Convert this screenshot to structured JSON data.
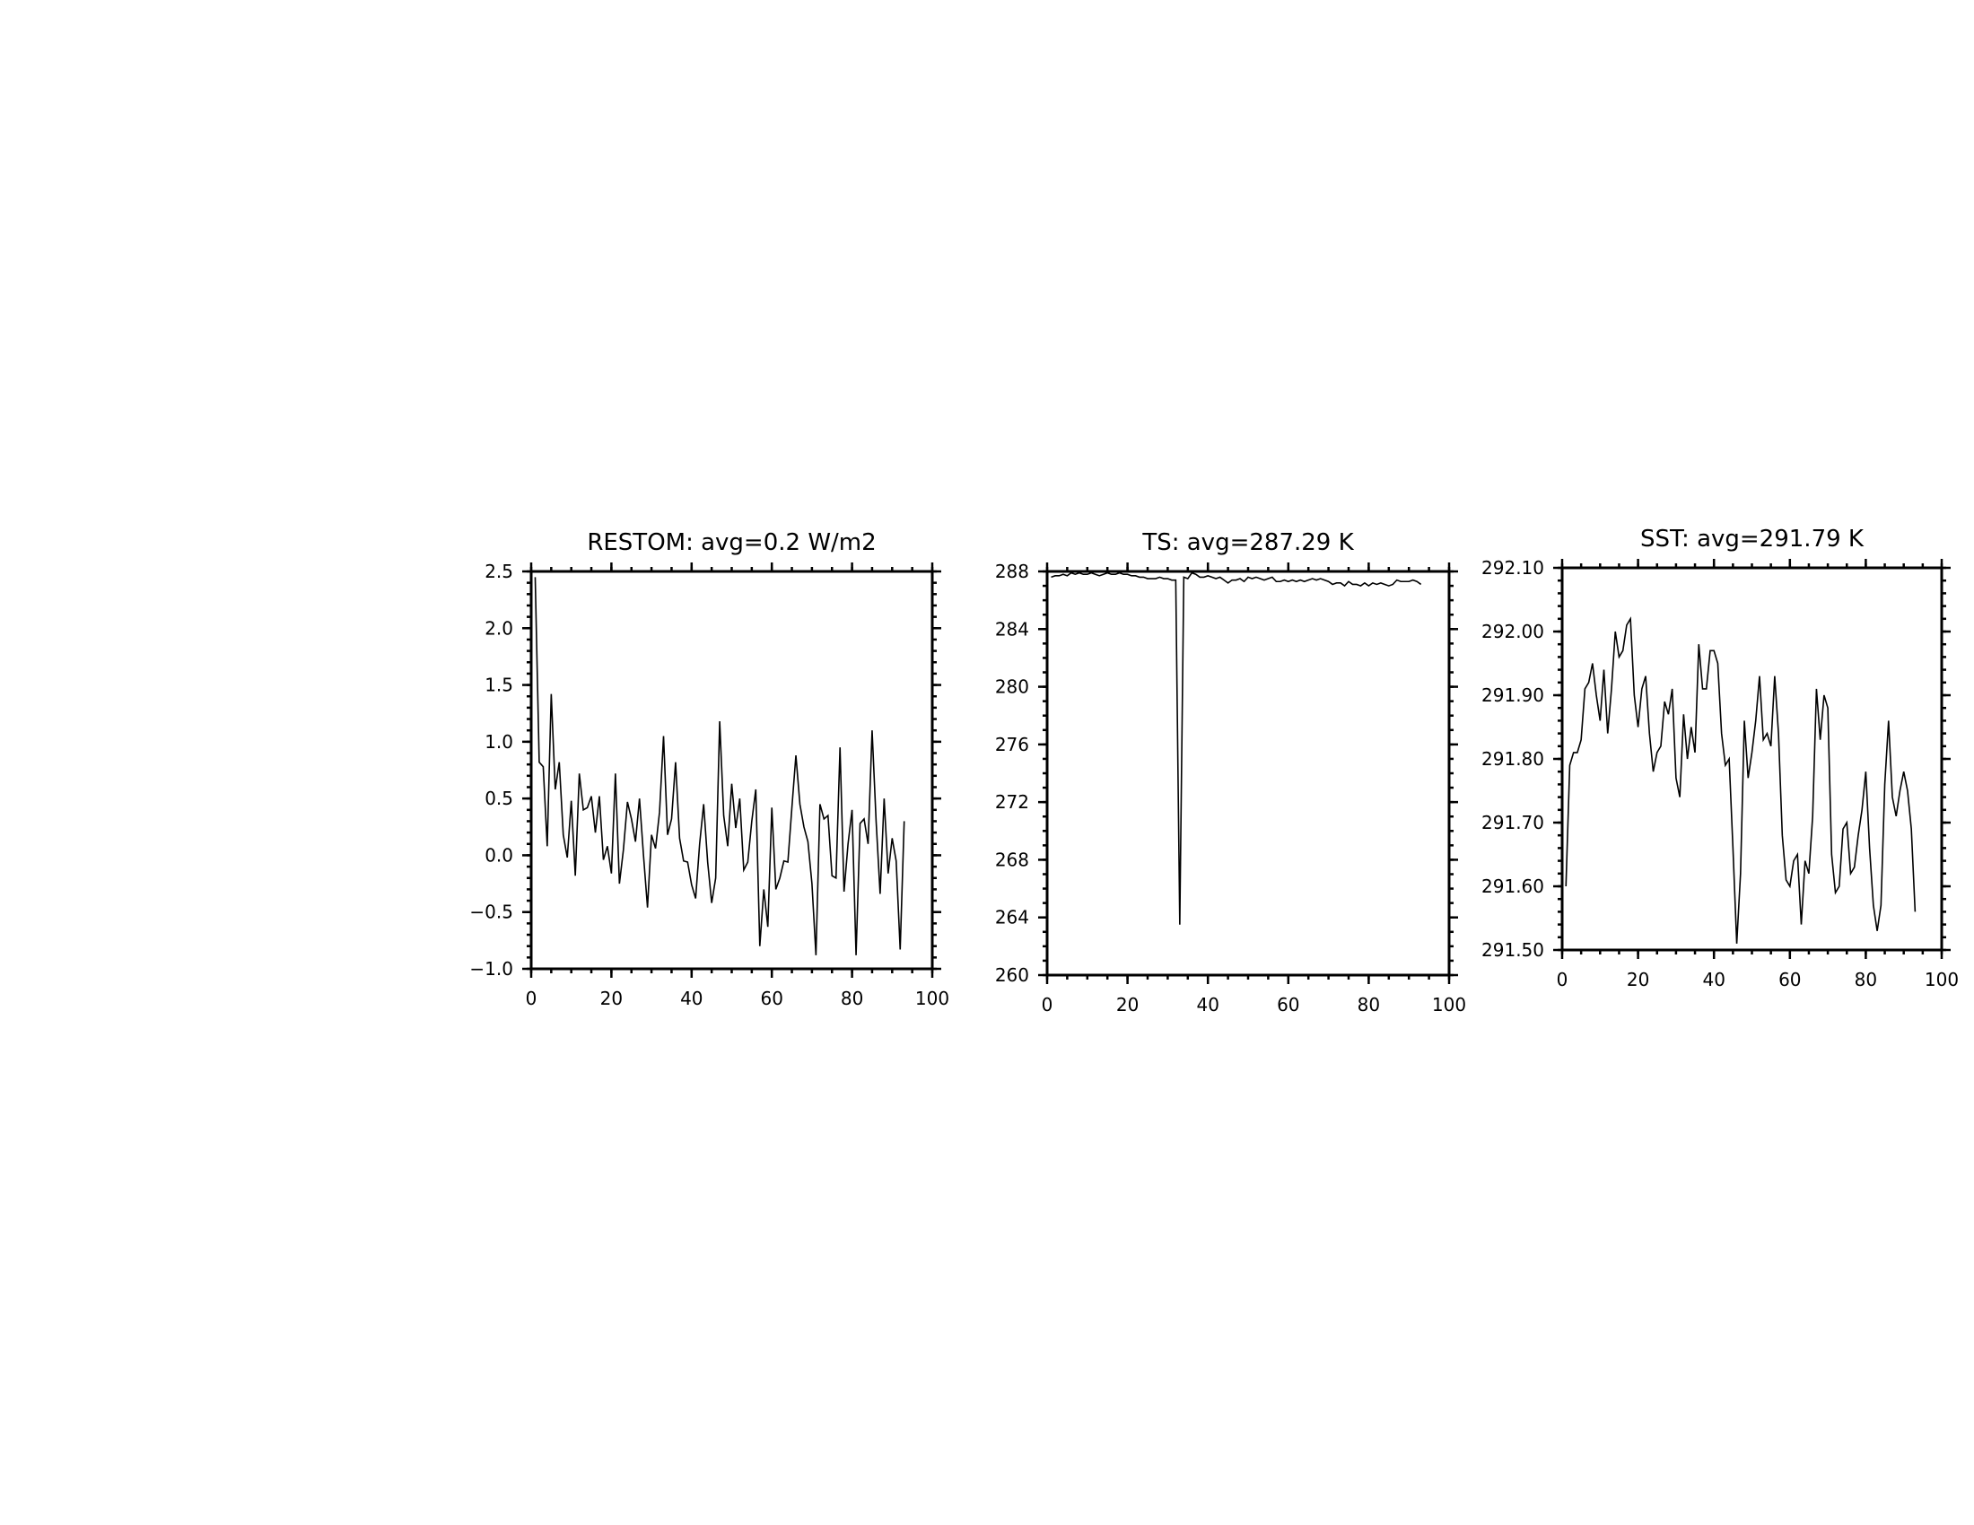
{
  "chart_data": [
    {
      "type": "line",
      "title": "RESTOM: avg=0.2 W/m2",
      "xlabel": "",
      "ylabel": "",
      "xlim": [
        0,
        100
      ],
      "ylim": [
        -1.0,
        2.5
      ],
      "xticks": [
        0,
        20,
        40,
        60,
        80,
        100
      ],
      "xtick_labels": [
        "0",
        "20",
        "40",
        "60",
        "80",
        "100"
      ],
      "yticks": [
        -1.0,
        -0.5,
        0.0,
        0.5,
        1.0,
        1.5,
        2.0,
        2.5
      ],
      "ytick_labels": [
        "−1.0",
        "−0.5",
        "0.0",
        "0.5",
        "1.0",
        "1.5",
        "2.0",
        "2.5"
      ],
      "x_minor_step": 5,
      "y_minor_step": 0.1,
      "grid": false,
      "x_start": 1,
      "values": [
        2.45,
        0.82,
        0.78,
        0.08,
        1.42,
        0.58,
        0.82,
        0.18,
        -0.02,
        0.48,
        -0.18,
        0.72,
        0.4,
        0.42,
        0.52,
        0.2,
        0.52,
        -0.04,
        0.08,
        -0.16,
        0.72,
        -0.25,
        0.05,
        0.47,
        0.32,
        0.12,
        0.5,
        0.0,
        -0.46,
        0.18,
        0.06,
        0.38,
        1.05,
        0.18,
        0.32,
        0.82,
        0.15,
        -0.05,
        -0.06,
        -0.26,
        -0.38,
        0.1,
        0.45,
        -0.06,
        -0.42,
        -0.2,
        1.18,
        0.35,
        0.08,
        0.63,
        0.24,
        0.5,
        -0.13,
        -0.06,
        0.3,
        0.58,
        -0.8,
        -0.3,
        -0.63,
        0.42,
        -0.3,
        -0.2,
        -0.05,
        -0.06,
        0.42,
        0.88,
        0.45,
        0.25,
        0.12,
        -0.25,
        -0.88,
        0.45,
        0.32,
        0.35,
        -0.18,
        -0.2,
        0.95,
        -0.32,
        0.1,
        0.4,
        -0.88,
        0.28,
        0.32,
        0.1,
        1.1,
        0.3,
        -0.34,
        0.5,
        -0.16,
        0.15,
        -0.05,
        -0.83,
        0.3
      ]
    },
    {
      "type": "line",
      "title": "TS: avg=287.29 K",
      "xlabel": "",
      "ylabel": "",
      "xlim": [
        0,
        100
      ],
      "ylim": [
        260,
        288
      ],
      "xticks": [
        0,
        20,
        40,
        60,
        80,
        100
      ],
      "xtick_labels": [
        "0",
        "20",
        "40",
        "60",
        "80",
        "100"
      ],
      "yticks": [
        260,
        264,
        268,
        272,
        276,
        280,
        284,
        288
      ],
      "ytick_labels": [
        "260",
        "264",
        "268",
        "272",
        "276",
        "280",
        "284",
        "288"
      ],
      "x_minor_step": 5,
      "y_minor_step": 1,
      "grid": false,
      "x_start": 1,
      "values": [
        287.6,
        287.7,
        287.7,
        287.8,
        287.7,
        287.9,
        287.8,
        287.9,
        287.8,
        287.8,
        287.9,
        287.8,
        287.7,
        287.8,
        287.9,
        287.8,
        287.8,
        287.9,
        287.8,
        287.8,
        287.7,
        287.7,
        287.6,
        287.6,
        287.5,
        287.5,
        287.5,
        287.6,
        287.5,
        287.5,
        287.4,
        287.4,
        263.5,
        287.6,
        287.5,
        287.9,
        287.8,
        287.6,
        287.6,
        287.7,
        287.6,
        287.5,
        287.6,
        287.4,
        287.2,
        287.4,
        287.4,
        287.5,
        287.3,
        287.6,
        287.5,
        287.6,
        287.5,
        287.4,
        287.5,
        287.6,
        287.3,
        287.3,
        287.4,
        287.3,
        287.4,
        287.3,
        287.4,
        287.3,
        287.4,
        287.5,
        287.4,
        287.5,
        287.4,
        287.3,
        287.1,
        287.2,
        287.2,
        287.0,
        287.3,
        287.1,
        287.1,
        287.0,
        287.2,
        287.0,
        287.2,
        287.1,
        287.2,
        287.1,
        287.0,
        287.1,
        287.4,
        287.3,
        287.3,
        287.3,
        287.4,
        287.3,
        287.1
      ]
    },
    {
      "type": "line",
      "title": "SST: avg=291.79 K",
      "xlabel": "",
      "ylabel": "",
      "xlim": [
        0,
        100
      ],
      "ylim": [
        291.5,
        292.1
      ],
      "xticks": [
        0,
        20,
        40,
        60,
        80,
        100
      ],
      "xtick_labels": [
        "0",
        "20",
        "40",
        "60",
        "80",
        "100"
      ],
      "yticks": [
        291.5,
        291.6,
        291.7,
        291.8,
        291.9,
        292.0,
        292.1
      ],
      "ytick_labels": [
        "291.50",
        "291.60",
        "291.70",
        "291.80",
        "291.90",
        "292.00",
        "292.10"
      ],
      "x_minor_step": 5,
      "y_minor_step": 0.02,
      "grid": false,
      "x_start": 1,
      "values": [
        291.6,
        291.79,
        291.81,
        291.81,
        291.83,
        291.91,
        291.92,
        291.95,
        291.9,
        291.86,
        291.94,
        291.84,
        291.91,
        292.0,
        291.96,
        291.97,
        292.01,
        292.02,
        291.9,
        291.85,
        291.91,
        291.93,
        291.84,
        291.78,
        291.81,
        291.82,
        291.89,
        291.87,
        291.91,
        291.77,
        291.74,
        291.87,
        291.8,
        291.85,
        291.81,
        291.98,
        291.91,
        291.91,
        291.97,
        291.97,
        291.95,
        291.84,
        291.79,
        291.8,
        291.66,
        291.51,
        291.62,
        291.86,
        291.77,
        291.81,
        291.86,
        291.93,
        291.83,
        291.84,
        291.82,
        291.93,
        291.84,
        291.68,
        291.61,
        291.6,
        291.64,
        291.65,
        291.54,
        291.64,
        291.62,
        291.71,
        291.91,
        291.83,
        291.9,
        291.88,
        291.65,
        291.59,
        291.6,
        291.69,
        291.7,
        291.62,
        291.63,
        291.68,
        291.72,
        291.78,
        291.66,
        291.57,
        291.53,
        291.57,
        291.76,
        291.86,
        291.74,
        291.71,
        291.75,
        291.78,
        291.75,
        291.69,
        291.56
      ]
    }
  ]
}
